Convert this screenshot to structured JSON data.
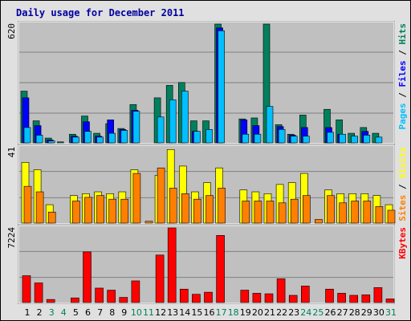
{
  "title": "Daily usage for December 2011",
  "colors": {
    "hits": "#00805c",
    "files": "#0000ff",
    "pages": "#00c0ff",
    "visits": "#ffff00",
    "sites": "#ff8000",
    "kbytes": "#ff0000",
    "weekend_label": "#00805c",
    "weekday_label": "#000000",
    "panel_bg": "#c0c0c0",
    "frame_bg": "#e0e0e0"
  },
  "chart_data": [
    {
      "type": "bar",
      "categories": [
        "1",
        "2",
        "3",
        "4",
        "5",
        "6",
        "7",
        "8",
        "9",
        "10",
        "11",
        "12",
        "13",
        "14",
        "15",
        "16",
        "17",
        "18",
        "19",
        "20",
        "21",
        "22",
        "23",
        "24",
        "25",
        "26",
        "27",
        "28",
        "29",
        "30",
        "31"
      ],
      "weekend_days": [
        "3",
        "4",
        "10",
        "11",
        "17",
        "18",
        "24",
        "25",
        "31"
      ],
      "ymax_label": "620",
      "ylim": [
        0,
        620
      ],
      "legend": [
        "Hits",
        "Files",
        "Pages"
      ],
      "series": [
        {
          "name": "Hits",
          "color": "#00805c",
          "values": [
            270,
            115,
            25,
            5,
            45,
            140,
            50,
            100,
            75,
            200,
            0,
            235,
            300,
            315,
            115,
            115,
            620,
            0,
            125,
            130,
            620,
            95,
            45,
            145,
            0,
            175,
            120,
            50,
            80,
            50,
            0
          ]
        },
        {
          "name": "Files",
          "color": "#0000ff",
          "values": [
            235,
            90,
            15,
            0,
            35,
            110,
            35,
            120,
            70,
            170,
            0,
            0,
            0,
            0,
            60,
            0,
            600,
            0,
            120,
            90,
            0,
            85,
            40,
            80,
            0,
            80,
            45,
            0,
            60,
            0,
            0
          ]
        },
        {
          "name": "Pages",
          "color": "#00c0ff",
          "values": [
            80,
            40,
            10,
            0,
            30,
            60,
            30,
            50,
            65,
            165,
            0,
            135,
            225,
            270,
            60,
            70,
            585,
            0,
            45,
            45,
            190,
            70,
            35,
            35,
            0,
            55,
            45,
            35,
            40,
            30,
            0
          ]
        }
      ]
    },
    {
      "type": "bar",
      "categories": [
        "1",
        "2",
        "3",
        "4",
        "5",
        "6",
        "7",
        "8",
        "9",
        "10",
        "11",
        "12",
        "13",
        "14",
        "15",
        "16",
        "17",
        "18",
        "19",
        "20",
        "21",
        "22",
        "23",
        "24",
        "25",
        "26",
        "27",
        "28",
        "29",
        "30",
        "31"
      ],
      "ymax_label": "41",
      "ylim": [
        0,
        41
      ],
      "legend": [
        "Sites",
        "Visits"
      ],
      "series": [
        {
          "name": "Visits",
          "color": "#ffff00",
          "values": [
            33,
            29,
            10,
            0,
            15,
            16,
            17,
            16,
            17,
            29,
            0,
            26,
            40,
            31,
            17,
            22,
            30,
            0,
            18,
            17,
            16,
            21,
            22,
            27,
            0,
            18,
            16,
            16,
            16,
            15,
            10
          ]
        },
        {
          "name": "Sites",
          "color": "#ff8000",
          "values": [
            20,
            17,
            6,
            0,
            12,
            14,
            15,
            13,
            13,
            27,
            1,
            30,
            19,
            16,
            13,
            15,
            19,
            0,
            12,
            12,
            12,
            11,
            13,
            15,
            2,
            15,
            11,
            12,
            12,
            9,
            7
          ]
        }
      ]
    },
    {
      "type": "bar",
      "categories": [
        "1",
        "2",
        "3",
        "4",
        "5",
        "6",
        "7",
        "8",
        "9",
        "10",
        "11",
        "12",
        "13",
        "14",
        "15",
        "16",
        "17",
        "18",
        "19",
        "20",
        "21",
        "22",
        "23",
        "24",
        "25",
        "26",
        "27",
        "28",
        "29",
        "30",
        "31"
      ],
      "ymax_label": "7224",
      "ylim": [
        0,
        7224
      ],
      "legend": [
        "KBytes"
      ],
      "series": [
        {
          "name": "KBytes",
          "color": "#ff0000",
          "values": [
            2600,
            1900,
            300,
            0,
            450,
            4900,
            1400,
            1200,
            500,
            2100,
            0,
            4600,
            7224,
            1300,
            800,
            1000,
            6500,
            0,
            1200,
            900,
            850,
            2300,
            700,
            1600,
            0,
            1300,
            900,
            700,
            750,
            1450,
            350
          ]
        }
      ]
    }
  ]
}
